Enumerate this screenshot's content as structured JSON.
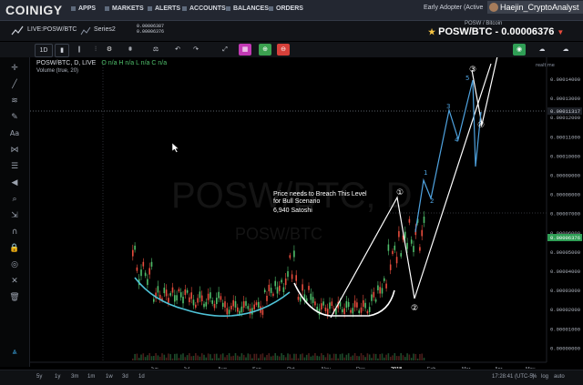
{
  "app": {
    "logo": "COINIGY"
  },
  "nav": {
    "items": [
      "APPS",
      "MARKETS",
      "ALERTS",
      "ACCOUNTS",
      "BALANCES",
      "ORDERS"
    ]
  },
  "user": {
    "badge": "Early Adopter (Active",
    "name": "Haejin_CryptoAnalyst"
  },
  "header": {
    "symbol": "LIVE:POSW/BTC",
    "series": "Series2",
    "values": [
      "0.00006387",
      "0.00006376"
    ],
    "pair_sub": "POSW / Bitcoin",
    "pair_title": "POSW/BTC - 0.00006376",
    "direction": "▼"
  },
  "toolbar": {
    "interval": "1D"
  },
  "chart": {
    "title": "POSW/BTC, D, LIVE",
    "ohlc": "O n/a H n/a L n/a C n/a",
    "volume": "Volume (true, 20)",
    "watermark1": "POSW/BTC, D",
    "watermark2": "POSW/BTC",
    "realtime": "realtime",
    "annotation_line1": "Price needs to Breach This Level",
    "annotation_line2": "for Bull Scenario",
    "annotation_line3": "6,940 Satoshi",
    "price_label_current": "0.00006376",
    "price_label_cross": "0.00011317",
    "y_ticks": [
      "0.00014000",
      "0.00013000",
      "0.00012000",
      "0.00011000",
      "0.00010000",
      "0.00009000",
      "0.00008000",
      "0.00007000",
      "0.00006000",
      "0.00005000",
      "0.00004000",
      "0.00003000",
      "0.00002000",
      "0.00001000",
      "0.00000000"
    ],
    "x_ticks": [
      "Jun",
      "Jul",
      "Aug",
      "Sep",
      "Oct",
      "Nov",
      "Dec",
      "2018",
      "Feb",
      "Mar",
      "Apr",
      "May"
    ],
    "wave_labels": [
      "1",
      "2",
      "3",
      "4",
      "5",
      "①",
      "②",
      "③",
      "④"
    ]
  },
  "bottom": {
    "ranges": [
      "5y",
      "1y",
      "3m",
      "1m",
      "1w",
      "3d",
      "1d"
    ],
    "time": "17:28:41 (UTC-5)",
    "modes": [
      "%",
      "log",
      "auto"
    ]
  },
  "colors": {
    "bg": "#000000",
    "candle_up": "#4fbf6b",
    "candle_down": "#e84c3d",
    "curve_blue": "#4fc3d8",
    "curve_white": "#ffffff",
    "wave_blue": "#4fa3e0"
  }
}
